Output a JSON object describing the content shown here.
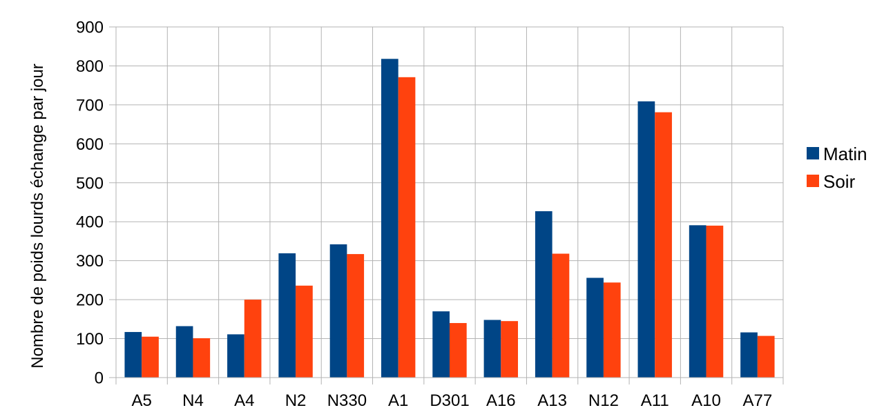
{
  "chart_data": {
    "type": "bar",
    "title": "",
    "xlabel": "",
    "ylabel": "Nombre de poids lourds échange par jour",
    "ylim": [
      0,
      900
    ],
    "yticks": [
      0,
      100,
      200,
      300,
      400,
      500,
      600,
      700,
      800,
      900
    ],
    "grid": true,
    "legend_position": "right",
    "categories": [
      "A5",
      "N4",
      "A4",
      "N2",
      "N330",
      "A1",
      "D301",
      "A16",
      "A13",
      "N12",
      "A11",
      "A10",
      "A77"
    ],
    "series": [
      {
        "name": "Matin",
        "color": "#004586",
        "values": [
          117,
          132,
          111,
          319,
          342,
          818,
          170,
          148,
          427,
          256,
          709,
          391,
          116
        ]
      },
      {
        "name": "Soir",
        "color": "#ff420e",
        "values": [
          105,
          101,
          200,
          236,
          317,
          771,
          140,
          145,
          318,
          244,
          681,
          390,
          107
        ]
      }
    ]
  }
}
